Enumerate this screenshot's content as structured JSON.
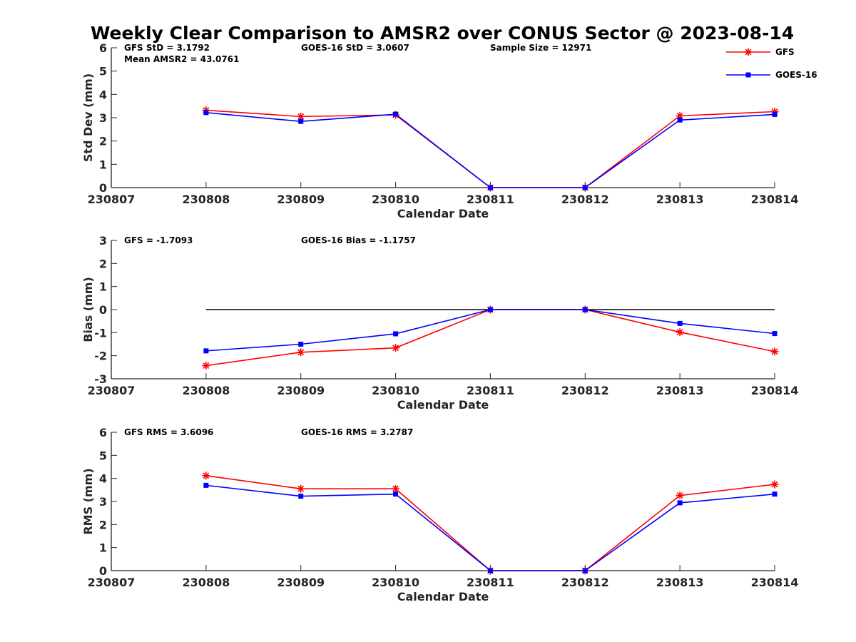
{
  "title": "Weekly Clear Comparison to AMSR2 over CONUS Sector @ 2023-08-14",
  "colors": {
    "gfs": "#ff0000",
    "goes": "#0000ff",
    "zero_line": "#000000",
    "axis": "#262626"
  },
  "legend": {
    "position": "top-right",
    "entries": [
      "GFS",
      "GOES-16"
    ]
  },
  "chart_data": [
    {
      "type": "line",
      "name": "std",
      "ylabel": "Std Dev (mm)",
      "xlabel": "Calendar Date",
      "categories": [
        "230807",
        "230808",
        "230809",
        "230810",
        "230811",
        "230812",
        "230813",
        "230814"
      ],
      "ylim": [
        0,
        6
      ],
      "yticks": [
        "0",
        "1",
        "2",
        "3",
        "4",
        "5",
        "6"
      ],
      "grid": false,
      "annotations": [
        {
          "text": "GFS StD = 3.1792",
          "slot": "a"
        },
        {
          "text": "Mean AMSR2 = 43.0761",
          "slot": "a2"
        },
        {
          "text": "GOES-16 StD = 3.0607",
          "slot": "b"
        },
        {
          "text": "Sample Size = 12971",
          "slot": "c"
        }
      ],
      "series": [
        {
          "name": "GFS",
          "marker": "asterisk",
          "x": [
            "230808",
            "230809",
            "230810",
            "230811",
            "230812",
            "230813",
            "230814"
          ],
          "values": [
            3.32,
            3.05,
            3.12,
            0.0,
            0.0,
            3.08,
            3.26
          ]
        },
        {
          "name": "GOES-16",
          "marker": "square",
          "x": [
            "230808",
            "230809",
            "230810",
            "230811",
            "230812",
            "230813",
            "230814"
          ],
          "values": [
            3.22,
            2.84,
            3.15,
            0.0,
            0.0,
            2.9,
            3.14
          ]
        }
      ]
    },
    {
      "type": "line",
      "name": "bias",
      "ylabel": "Bias (mm)",
      "xlabel": "Calendar Date",
      "categories": [
        "230807",
        "230808",
        "230809",
        "230810",
        "230811",
        "230812",
        "230813",
        "230814"
      ],
      "ylim": [
        -3,
        3
      ],
      "yticks": [
        "-3",
        "-2",
        "-1",
        "0",
        "1",
        "2",
        "3"
      ],
      "grid": false,
      "zero_line": {
        "x": [
          "230808",
          "230814"
        ],
        "y": 0
      },
      "annotations": [
        {
          "text": "GFS = -1.7093",
          "slot": "a"
        },
        {
          "text": "GOES-16 Bias  = -1.1757",
          "slot": "b"
        }
      ],
      "series": [
        {
          "name": "GFS",
          "marker": "asterisk",
          "x": [
            "230808",
            "230809",
            "230810",
            "230811",
            "230812",
            "230813",
            "230814"
          ],
          "values": [
            -2.43,
            -1.85,
            -1.66,
            0.0,
            0.0,
            -0.98,
            -1.82
          ]
        },
        {
          "name": "GOES-16",
          "marker": "square",
          "x": [
            "230808",
            "230809",
            "230810",
            "230811",
            "230812",
            "230813",
            "230814"
          ],
          "values": [
            -1.79,
            -1.5,
            -1.05,
            0.0,
            0.0,
            -0.6,
            -1.04
          ]
        }
      ]
    },
    {
      "type": "line",
      "name": "rms",
      "ylabel": "RMS (mm)",
      "xlabel": "Calendar Date",
      "categories": [
        "230807",
        "230808",
        "230809",
        "230810",
        "230811",
        "230812",
        "230813",
        "230814"
      ],
      "ylim": [
        0,
        6
      ],
      "yticks": [
        "0",
        "1",
        "2",
        "3",
        "4",
        "5",
        "6"
      ],
      "grid": false,
      "annotations": [
        {
          "text": "GFS RMS = 3.6096",
          "slot": "a"
        },
        {
          "text": "GOES-16 RMS = 3.2787",
          "slot": "b"
        }
      ],
      "series": [
        {
          "name": "GFS",
          "marker": "asterisk",
          "x": [
            "230808",
            "230809",
            "230810",
            "230811",
            "230812",
            "230813",
            "230814"
          ],
          "values": [
            4.12,
            3.55,
            3.55,
            0.0,
            0.0,
            3.26,
            3.74
          ]
        },
        {
          "name": "GOES-16",
          "marker": "square",
          "x": [
            "230808",
            "230809",
            "230810",
            "230811",
            "230812",
            "230813",
            "230814"
          ],
          "values": [
            3.7,
            3.23,
            3.32,
            0.0,
            0.0,
            2.94,
            3.32
          ]
        }
      ]
    }
  ]
}
